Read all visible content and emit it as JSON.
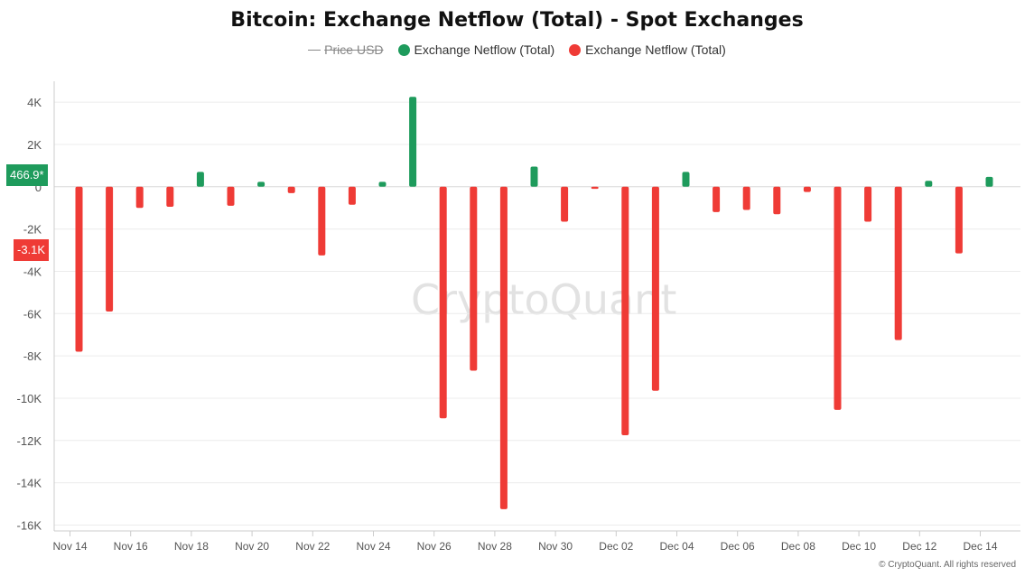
{
  "title": "Bitcoin: Exchange Netflow (Total) - Spot Exchanges",
  "legend": [
    {
      "label": "Price USD",
      "color": "#888888",
      "disabled": true
    },
    {
      "label": "Exchange Netflow (Total)",
      "color": "#1e9b5c"
    },
    {
      "label": "Exchange Netflow (Total)",
      "color": "#ef3b36"
    }
  ],
  "badges": {
    "current_positive": "466.9*",
    "current_negative": "-3.1K"
  },
  "watermark": "CryptoQuant",
  "copyright": "© CryptoQuant. All rights reserved",
  "chart_data": {
    "type": "bar",
    "title": "Bitcoin: Exchange Netflow (Total) - Spot Exchanges",
    "xlabel": "",
    "ylabel": "",
    "ylim": [
      -16000,
      4000
    ],
    "yticks": [
      4000,
      2000,
      0,
      -2000,
      -4000,
      -6000,
      -8000,
      -10000,
      -12000,
      -14000,
      -16000
    ],
    "ytick_labels": [
      "4K",
      "2K",
      "0",
      "-2K",
      "-4K",
      "-6K",
      "-8K",
      "-10K",
      "-12K",
      "-14K",
      "-16K"
    ],
    "xtick_labels": [
      "Nov 14",
      "Nov 16",
      "Nov 18",
      "Nov 20",
      "Nov 22",
      "Nov 24",
      "Nov 26",
      "Nov 28",
      "Nov 30",
      "Dec 02",
      "Dec 04",
      "Dec 06",
      "Dec 08",
      "Dec 10",
      "Dec 12",
      "Dec 14"
    ],
    "grid": true,
    "positive_color": "#1e9b5c",
    "negative_color": "#ef3b36",
    "categories": [
      "Nov 14",
      "Nov 15",
      "Nov 16",
      "Nov 17",
      "Nov 18",
      "Nov 19",
      "Nov 20",
      "Nov 21",
      "Nov 22",
      "Nov 23",
      "Nov 24",
      "Nov 25",
      "Nov 26",
      "Nov 27",
      "Nov 28",
      "Nov 29",
      "Nov 30",
      "Dec 01",
      "Dec 02",
      "Dec 03",
      "Dec 04",
      "Dec 05",
      "Dec 06",
      "Dec 07",
      "Dec 08",
      "Dec 09",
      "Dec 10",
      "Dec 11",
      "Dec 12",
      "Dec 13",
      "Dec 14"
    ],
    "values": [
      -7800,
      -5900,
      -1000,
      -950,
      700,
      -900,
      230,
      -300,
      -3250,
      -850,
      230,
      4250,
      -10950,
      -8700,
      -15250,
      950,
      -1650,
      -100,
      -11750,
      -9650,
      700,
      -1200,
      -1100,
      -1300,
      -250,
      -10550,
      -1650,
      -7250,
      280,
      -3150,
      467
    ]
  }
}
